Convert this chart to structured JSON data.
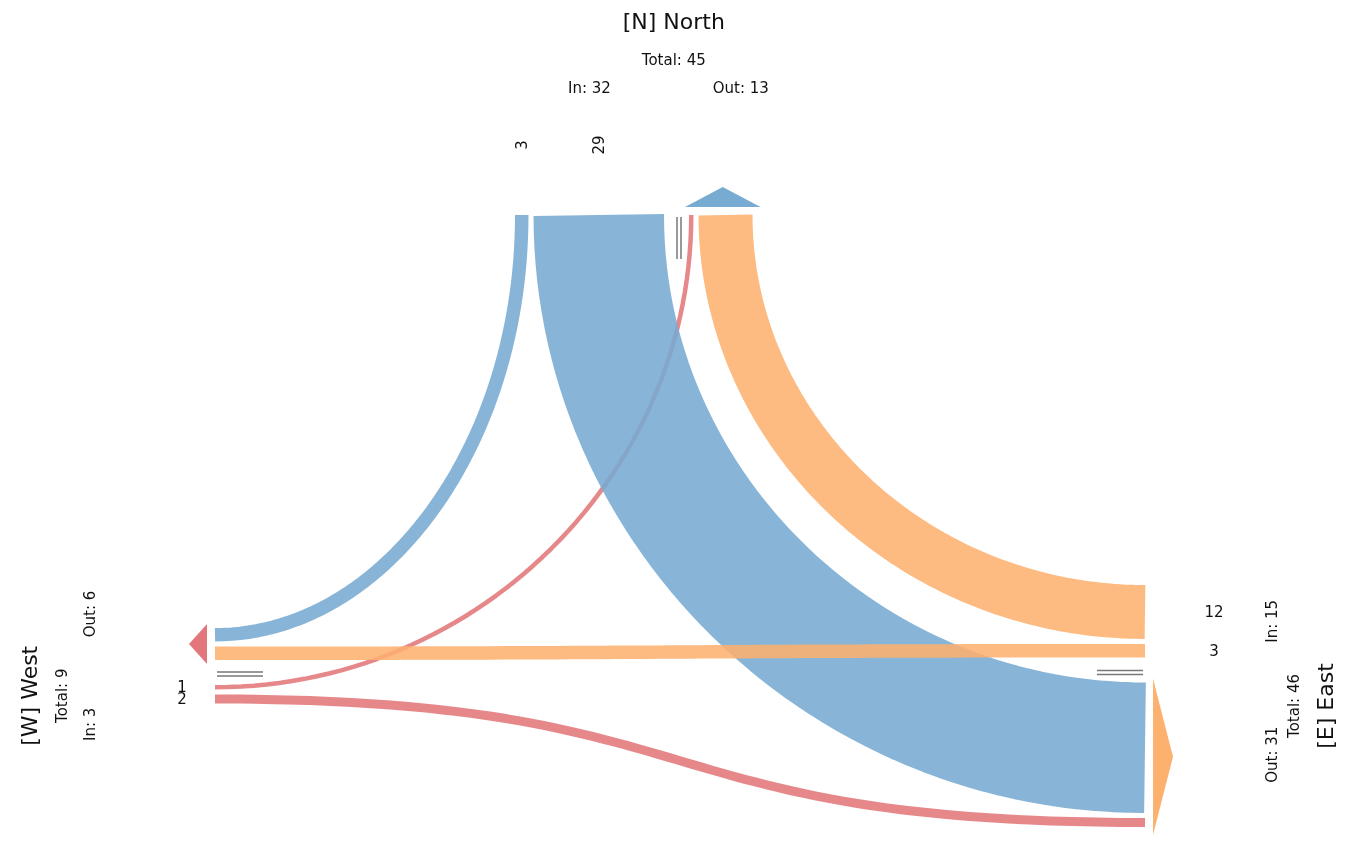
{
  "chart_data": {
    "type": "other",
    "categories": [
      "[N] North",
      "[E] East",
      "[W] West"
    ],
    "series": [
      {
        "colors": [
          "#77abd1",
          "#fdb16f",
          "#e3767a"
        ],
        "values": [
          null,
          12,
          1
        ]
      },
      {
        "colors": [
          "#77abd1",
          "#fdb16f",
          "#e3767a"
        ],
        "values": [
          29,
          null,
          2
        ]
      },
      {
        "colors": [
          "#77abd1",
          "#fdb16f",
          "#e3767a"
        ],
        "values": [
          3,
          3,
          null
        ]
      }
    ],
    "data_labels": true,
    "annotations": [
      "Total: 45",
      "In: 32",
      "Out: 13",
      "Total: 46",
      "In: 15",
      "Out: 31",
      "Total: 9",
      "In: 3",
      "Out: 6"
    ]
  }
}
